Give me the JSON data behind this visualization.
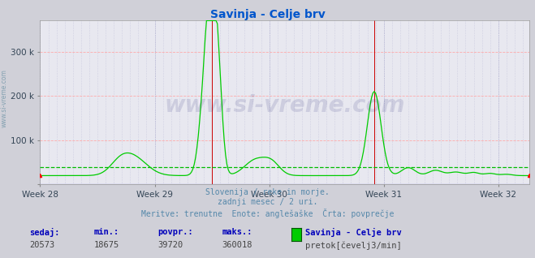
{
  "title": "Savinja - Celje brv",
  "title_color": "#0055cc",
  "background_color": "#d0d0d8",
  "plot_bg_color": "#e8e8f0",
  "grid_color_h": "#ffaaaa",
  "grid_color_v": "#aaaacc",
  "xlabel_weeks": [
    "Week 28",
    "Week 29",
    "Week 30",
    "Week 31",
    "Week 32"
  ],
  "ylim_max": 370000,
  "avg_line_value": 39720,
  "avg_line_color": "#00bb00",
  "line_color": "#00cc00",
  "watermark_text": "www.si-vreme.com",
  "watermark_color": "#111166",
  "watermark_alpha": 0.12,
  "footer_line1": "Slovenija / reke in morje.",
  "footer_line2": "zadnji mesec / 2 uri.",
  "footer_line3": "Meritve: trenutne  Enote: anglešaške  Črta: povprečje",
  "footer_color": "#5588aa",
  "stats_labels": [
    "sedaj:",
    "min.:",
    "povpr.:",
    "maks.:"
  ],
  "stats_values": [
    "20573",
    "18675",
    "39720",
    "360018"
  ],
  "stats_label_color": "#0000bb",
  "stats_value_color": "#444444",
  "legend_title": "Savinja - Celje brv",
  "legend_label": "pretok[čevelj3/min]",
  "legend_color": "#00cc00",
  "n_points": 360,
  "base_val": 20000,
  "red_vline_color": "#cc0000",
  "sideways_label": "www.si-vreme.com",
  "sideways_color": "#7799aa"
}
